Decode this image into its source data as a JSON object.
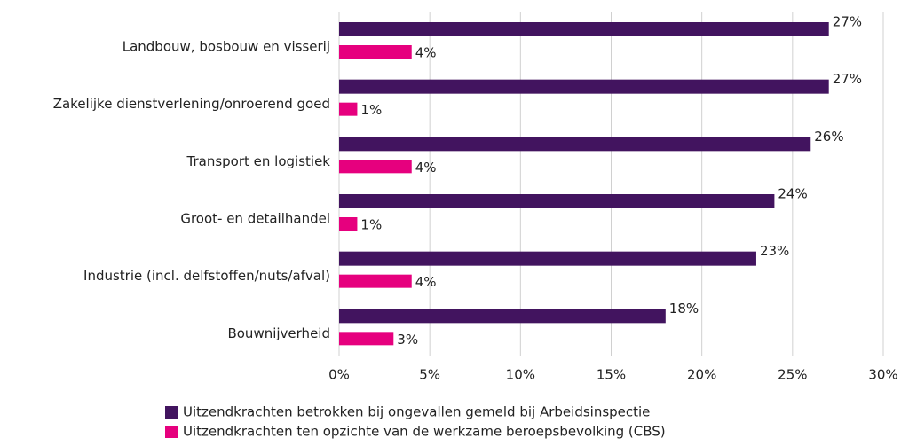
{
  "chart_data": {
    "type": "bar",
    "orientation": "horizontal",
    "categories": [
      "Landbouw, bosbouw en visserij",
      "Zakelijke dienstverlening/onroerend goed",
      "Transport en logistiek",
      "Groot- en detailhandel",
      "Industrie (incl. delfstoffen/nuts/afval)",
      "Bouwnijverheid"
    ],
    "series": [
      {
        "name": "Uitzendkrachten betrokken bij ongevallen gemeld bij Arbeidsinspectie",
        "color": "#42145f",
        "values": [
          27,
          27,
          26,
          24,
          23,
          18
        ],
        "value_labels": [
          "27%",
          "27%",
          "26%",
          "24%",
          "23%",
          "18%"
        ]
      },
      {
        "name": "Uitzendkrachten ten opzichte van de werkzame beroepsbevolking (CBS)",
        "color": "#e6007e",
        "values": [
          4,
          1,
          4,
          1,
          4,
          3
        ],
        "value_labels": [
          "4%",
          "1%",
          "4%",
          "1%",
          "4%",
          "3%"
        ]
      }
    ],
    "xlim": [
      0,
      30
    ],
    "xticks": [
      {
        "value": 0,
        "label": "0%"
      },
      {
        "value": 5,
        "label": "5%"
      },
      {
        "value": 10,
        "label": "10%"
      },
      {
        "value": 15,
        "label": "15%"
      },
      {
        "value": 20,
        "label": "20%"
      },
      {
        "value": 25,
        "label": "25%"
      },
      {
        "value": 30,
        "label": "30%"
      }
    ],
    "grid": true,
    "legend": "bottom"
  }
}
